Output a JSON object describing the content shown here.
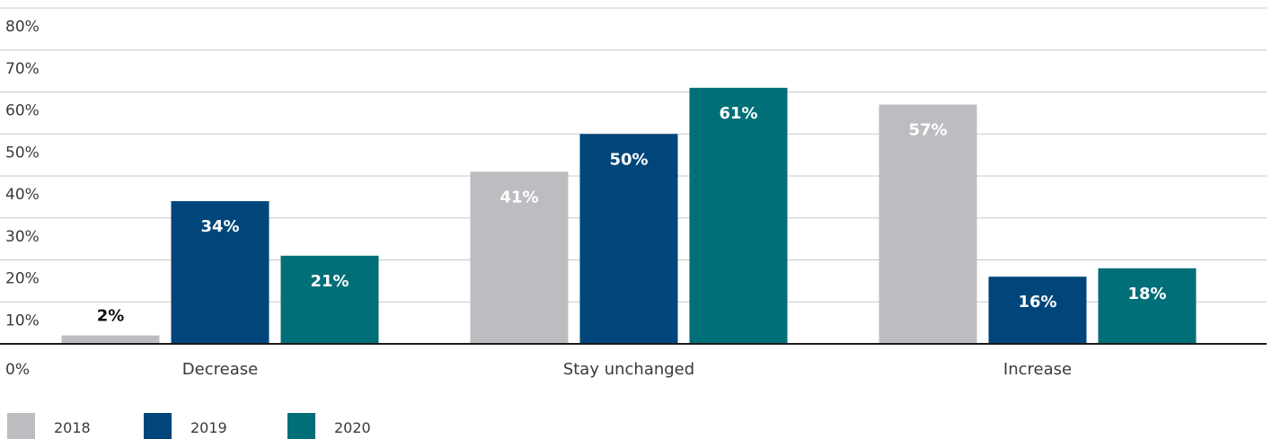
{
  "chart_data": {
    "type": "bar",
    "categories": [
      "Decrease",
      "Stay unchanged",
      "Increase"
    ],
    "series": [
      {
        "name": "2018",
        "values": [
          2,
          41,
          57
        ],
        "color": "#bcbdc0"
      },
      {
        "name": "2019",
        "values": [
          34,
          50,
          16
        ],
        "color": "#00467a"
      },
      {
        "name": "2020",
        "values": [
          21,
          61,
          18
        ],
        "color": "#006f78"
      }
    ],
    "data_labels": [
      [
        "2%",
        "41%",
        "57%"
      ],
      [
        "34%",
        "50%",
        "16%"
      ],
      [
        "21%",
        "61%",
        "18%"
      ]
    ],
    "ylim": [
      0,
      80
    ],
    "yticks": [
      0,
      10,
      20,
      30,
      40,
      50,
      60,
      70,
      80
    ],
    "ytick_labels": [
      "0%",
      "10%",
      "20%",
      "30%",
      "40%",
      "50%",
      "60%",
      "70%",
      "80%"
    ],
    "grid": true,
    "legend_position": "bottom-left",
    "title": "",
    "xlabel": "",
    "ylabel": ""
  }
}
